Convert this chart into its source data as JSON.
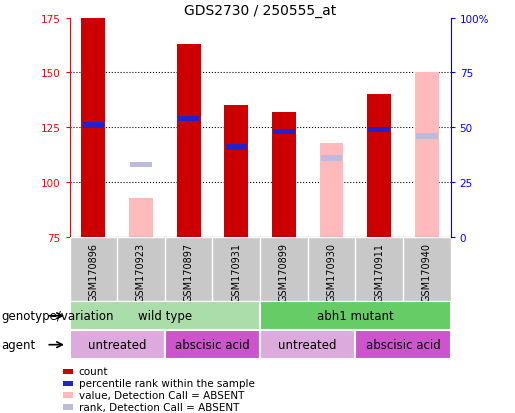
{
  "title": "GDS2730 / 250555_at",
  "samples": [
    "GSM170896",
    "GSM170923",
    "GSM170897",
    "GSM170931",
    "GSM170899",
    "GSM170930",
    "GSM170911",
    "GSM170940"
  ],
  "ylim": [
    75,
    175
  ],
  "y2lim": [
    0,
    100
  ],
  "yticks": [
    75,
    100,
    125,
    150,
    175
  ],
  "y2ticks": [
    0,
    25,
    50,
    75,
    100
  ],
  "y2ticklabels": [
    "0",
    "25",
    "50",
    "75",
    "100%"
  ],
  "dotted_yticks": [
    100,
    125,
    150
  ],
  "bars": [
    {
      "sample": "GSM170896",
      "count": 175,
      "rank": 126,
      "absent_value": null,
      "absent_rank": null
    },
    {
      "sample": "GSM170923",
      "count": null,
      "rank": null,
      "absent_value": 93,
      "absent_rank": 108
    },
    {
      "sample": "GSM170897",
      "count": 163,
      "rank": 129,
      "absent_value": null,
      "absent_rank": null
    },
    {
      "sample": "GSM170931",
      "count": 135,
      "rank": 116,
      "absent_value": null,
      "absent_rank": null
    },
    {
      "sample": "GSM170899",
      "count": 132,
      "rank": 123,
      "absent_value": null,
      "absent_rank": null
    },
    {
      "sample": "GSM170930",
      "count": null,
      "rank": null,
      "absent_value": 118,
      "absent_rank": 111
    },
    {
      "sample": "GSM170911",
      "count": 140,
      "rank": 124,
      "absent_value": null,
      "absent_rank": null
    },
    {
      "sample": "GSM170940",
      "count": null,
      "rank": null,
      "absent_value": 150,
      "absent_rank": 121
    }
  ],
  "count_color": "#cc0000",
  "rank_color": "#2222cc",
  "absent_value_color": "#ffbbbb",
  "absent_rank_color": "#bbbbdd",
  "genotype_groups": [
    {
      "label": "wild type",
      "start": 0,
      "end": 4,
      "color": "#aaddaa"
    },
    {
      "label": "abh1 mutant",
      "start": 4,
      "end": 8,
      "color": "#66cc66"
    }
  ],
  "agent_groups": [
    {
      "label": "untreated",
      "start": 0,
      "end": 2,
      "color": "#ddaadd"
    },
    {
      "label": "abscisic acid",
      "start": 2,
      "end": 4,
      "color": "#cc55cc"
    },
    {
      "label": "untreated",
      "start": 4,
      "end": 6,
      "color": "#ddaadd"
    },
    {
      "label": "abscisic acid",
      "start": 6,
      "end": 8,
      "color": "#cc55cc"
    }
  ],
  "legend_items": [
    {
      "label": "count",
      "color": "#cc0000"
    },
    {
      "label": "percentile rank within the sample",
      "color": "#2222cc"
    },
    {
      "label": "value, Detection Call = ABSENT",
      "color": "#ffbbbb"
    },
    {
      "label": "rank, Detection Call = ABSENT",
      "color": "#bbbbdd"
    }
  ],
  "row_label_genotype": "genotype/variation",
  "row_label_agent": "agent",
  "title_fontsize": 10,
  "tick_fontsize": 7.5,
  "label_fontsize": 8.5,
  "sample_fontsize": 7,
  "legend_fontsize": 7.5
}
